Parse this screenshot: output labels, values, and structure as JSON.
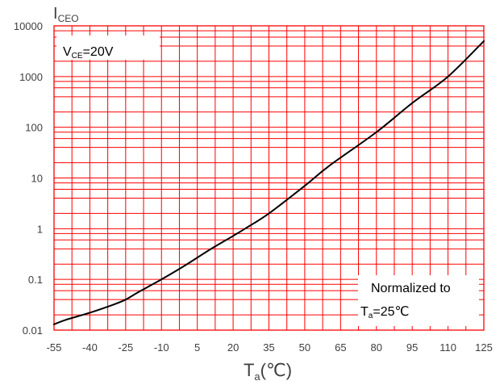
{
  "chart_data": {
    "type": "line",
    "x_axis": {
      "label_main": "T",
      "label_sub": "a",
      "label_unit": "(℃)",
      "range": [
        -55,
        125
      ],
      "ticks": [
        -55,
        -40,
        -25,
        -10,
        5,
        20,
        35,
        50,
        65,
        80,
        95,
        110,
        125
      ],
      "tick_labels": [
        "-55",
        "-40",
        "-25",
        "-10",
        "5",
        "20",
        "35",
        "50",
        "65",
        "80",
        "95",
        "110",
        "125"
      ]
    },
    "y_axis": {
      "label_main": "I",
      "label_sub": "CEO",
      "scale": "log",
      "range": [
        0.01,
        10000
      ],
      "ticks": [
        0.01,
        0.1,
        1,
        10,
        100,
        1000,
        10000
      ],
      "tick_labels": [
        "0.01",
        "0.1",
        "1",
        "10",
        "100",
        "1000",
        "10000"
      ]
    },
    "grid": true,
    "grid_color": "#ff0000",
    "line_color": "#000000",
    "series": [
      {
        "x": [
          -55,
          -50,
          -40,
          -30,
          -25,
          -20,
          -10,
          0,
          10,
          20,
          25,
          35,
          50,
          60,
          80,
          95,
          110,
          125
        ],
        "y": [
          0.013,
          0.016,
          0.022,
          0.032,
          0.04,
          0.055,
          0.1,
          0.19,
          0.38,
          0.72,
          1.0,
          2.0,
          7.0,
          17,
          80,
          300,
          1000,
          5000
        ]
      }
    ],
    "annotations": {
      "condition": {
        "main": "V",
        "sub": "CE",
        "rest": "=20V"
      },
      "normalized_line1": "Normalized to",
      "normalized_line2": {
        "main": "T",
        "sub": "a",
        "rest": "=25℃"
      }
    }
  }
}
